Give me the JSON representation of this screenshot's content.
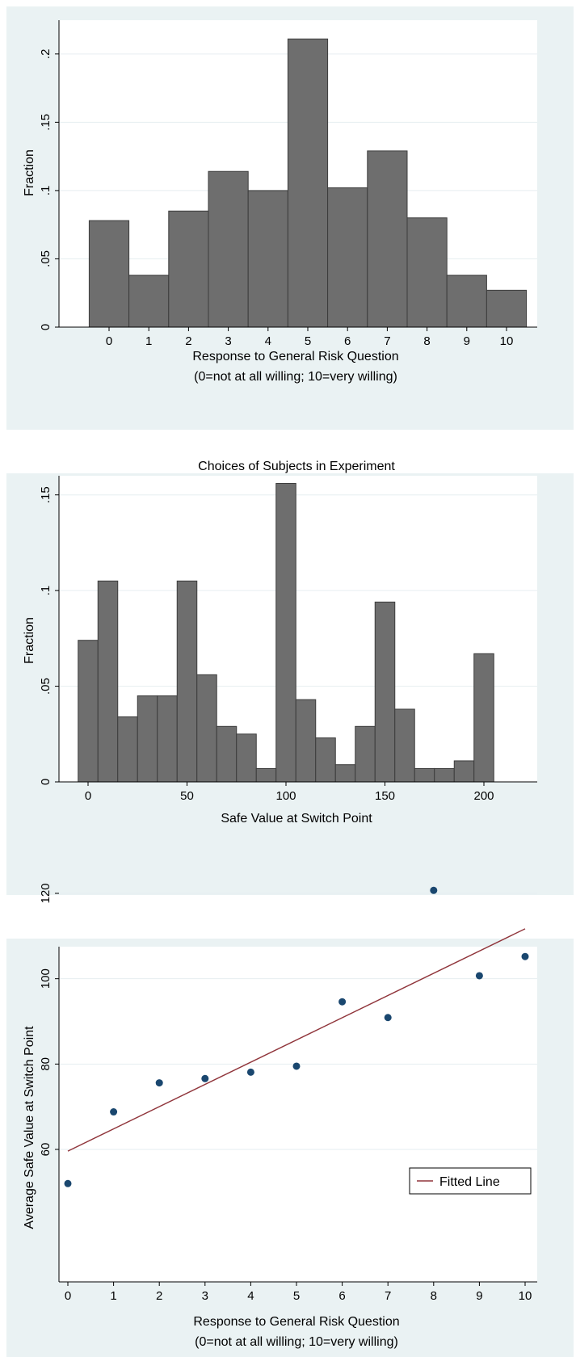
{
  "chart_data": [
    {
      "type": "bar",
      "title": "",
      "xlabel": "Response to General Risk Question",
      "xlabel2": "(0=not at all willing; 10=very willing)",
      "ylabel": "Fraction",
      "categories": [
        "0",
        "1",
        "2",
        "3",
        "4",
        "5",
        "6",
        "7",
        "8",
        "9",
        "10"
      ],
      "values": [
        0.078,
        0.038,
        0.085,
        0.114,
        0.1,
        0.211,
        0.102,
        0.129,
        0.08,
        0.038,
        0.027
      ],
      "ylim": [
        0,
        0.22
      ],
      "yticks": [
        0,
        0.05,
        0.1,
        0.15,
        0.2
      ],
      "yticklabels": [
        "0",
        ".05",
        ".1",
        ".15",
        ".2"
      ],
      "grid": true,
      "bar_color": "#6e6e6e"
    },
    {
      "type": "bar",
      "title": "Choices of Subjects in Experiment",
      "xlabel": "Safe Value at Switch Point",
      "ylabel": "Fraction",
      "bin_width": 10,
      "bin_centers": [
        0,
        10,
        20,
        30,
        40,
        50,
        60,
        70,
        80,
        90,
        100,
        110,
        120,
        130,
        140,
        150,
        160,
        170,
        180,
        190,
        200
      ],
      "values": [
        0.074,
        0.105,
        0.034,
        0.045,
        0.045,
        0.105,
        0.056,
        0.029,
        0.025,
        0.007,
        0.156,
        0.043,
        0.023,
        0.009,
        0.029,
        0.094,
        0.038,
        0.007,
        0.007,
        0.011,
        0.067
      ],
      "xlim": [
        -15,
        210
      ],
      "ylim": [
        0,
        0.16
      ],
      "xticks": [
        0,
        50,
        100,
        150,
        200
      ],
      "yticks": [
        0,
        0.05,
        0.1,
        0.15
      ],
      "yticklabels": [
        "0",
        ".05",
        ".1",
        ".15"
      ],
      "grid": true,
      "bar_color": "#6e6e6e"
    },
    {
      "type": "scatter",
      "title": "",
      "xlabel": "Response to General Risk Question",
      "xlabel2": "(0=not at all willing; 10=very willing)",
      "ylabel": "Average Safe Value at Switch Point",
      "x": [
        0,
        1,
        2,
        3,
        4,
        5,
        6,
        7,
        8,
        9,
        10
      ],
      "y": [
        52.0,
        68.8,
        75.6,
        76.6,
        78.1,
        79.5,
        94.6,
        90.9,
        120.7,
        100.7,
        105.2
      ],
      "fitted_line": {
        "name": "Fitted Line",
        "x": [
          0,
          10
        ],
        "y": [
          59.6,
          111.7
        ]
      },
      "xlim": [
        0,
        10
      ],
      "ylim": [
        50,
        122
      ],
      "xticks": [
        0,
        1,
        2,
        3,
        4,
        5,
        6,
        7,
        8,
        9,
        10
      ],
      "yticks": [
        60,
        80,
        100,
        120
      ],
      "grid": true,
      "legend_position": "bottom-right",
      "point_color": "#1a476f",
      "line_color": "#90353b"
    }
  ]
}
